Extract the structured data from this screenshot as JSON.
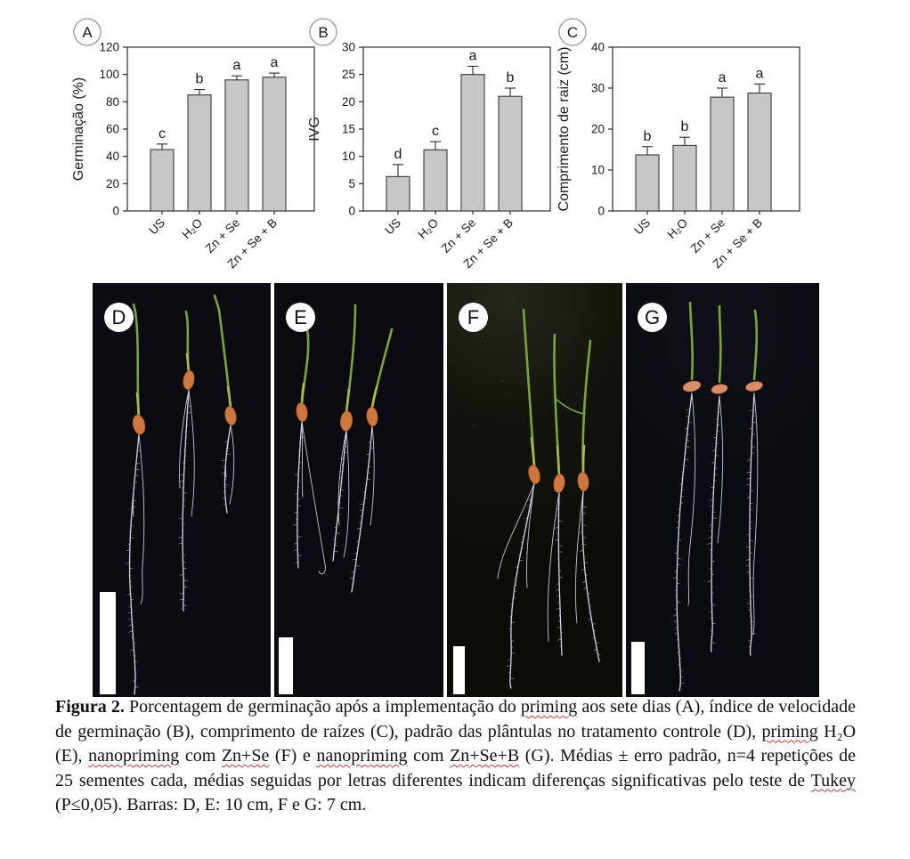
{
  "colors": {
    "bar_fill": "#c7c7c7",
    "bar_border": "#3a3a3a",
    "axis": "#2b2b2b",
    "us_label_gray": "#8f8f8f",
    "squiggle_red": "#c43b33",
    "seed_orange": "#cf7740",
    "leaf_green": "#79a53f",
    "root_white": "#d8d2e4",
    "photo_background": "#0b0b10"
  },
  "chart_data": [
    {
      "type": "bar",
      "panel": "A",
      "ylabel": "Germinação (%)",
      "xlabel": "",
      "ylim": [
        0,
        120
      ],
      "ytick": 20,
      "categories": [
        "US",
        "H₂O",
        "Zn + Se",
        "Zn + Se + B"
      ],
      "values": [
        45,
        85,
        96,
        98
      ],
      "errors": [
        4,
        4,
        3,
        3
      ],
      "sig_letters": [
        "c",
        "b",
        "a",
        "a"
      ],
      "category_label_colors": [
        "#8f8f8f",
        "#1a1a1a",
        "#1a1a1a",
        "#1a1a1a"
      ],
      "grid": false,
      "legend": false
    },
    {
      "type": "bar",
      "panel": "B",
      "ylabel": "IVG",
      "xlabel": "",
      "ylim": [
        0,
        30
      ],
      "ytick": 5,
      "categories": [
        "US",
        "H₂O",
        "Zn + Se",
        "Zn + Se + B"
      ],
      "values": [
        6.3,
        11.2,
        25,
        21
      ],
      "errors": [
        2.2,
        1.5,
        1.5,
        1.5
      ],
      "sig_letters": [
        "d",
        "c",
        "a",
        "b"
      ],
      "category_label_colors": [
        "#8f8f8f",
        "#1a1a1a",
        "#1a1a1a",
        "#1a1a1a"
      ],
      "grid": false,
      "legend": false
    },
    {
      "type": "bar",
      "panel": "C",
      "ylabel": "Comprimento de raiz (cm)",
      "xlabel": "",
      "ylim": [
        0,
        40
      ],
      "ytick": 10,
      "categories": [
        "US",
        "H₂O",
        "Zn + Se",
        "Zn + Se + B"
      ],
      "values": [
        13.7,
        16,
        27.8,
        28.8
      ],
      "errors": [
        2,
        2,
        2.2,
        2.2
      ],
      "sig_letters": [
        "b",
        "b",
        "a",
        "a"
      ],
      "category_label_colors": [
        "#8f8f8f",
        "#1a1a1a",
        "#1a1a1a",
        "#1a1a1a"
      ],
      "grid": false,
      "legend": false
    }
  ],
  "photo_panels": [
    {
      "label": "D"
    },
    {
      "label": "E"
    },
    {
      "label": "F"
    },
    {
      "label": "G"
    }
  ],
  "caption": {
    "segments": [
      {
        "text": "Figura 2.",
        "bold": true
      },
      {
        "text": " Porcentagem de germinação após a implementação do "
      },
      {
        "text": "priming",
        "squiggle": true
      },
      {
        "text": " aos sete dias (A), índice de velocidade de germinação (B), comprimento de raízes (C), padrão das plântulas no tratamento controle (D), "
      },
      {
        "text": "priming",
        "squiggle": true
      },
      {
        "text": " H₂O (E), "
      },
      {
        "text": "nanopriming",
        "squiggle": true
      },
      {
        "text": " com "
      },
      {
        "text": "Zn+Se",
        "squiggle": true
      },
      {
        "text": " (F) e "
      },
      {
        "text": "nanopriming",
        "squiggle": true
      },
      {
        "text": " com "
      },
      {
        "text": "Zn+Se+B",
        "squiggle": true
      },
      {
        "text": " (G). Médias ± erro padrão, n=4 repetições de 25 sementes cada, médias seguidas por letras diferentes indicam diferenças significativas pelo teste de "
      },
      {
        "text": "Tukey",
        "squiggle": true
      },
      {
        "text": " (P≤0,05). Barras: D, E: 10 cm, F e G: 7 cm."
      }
    ]
  }
}
